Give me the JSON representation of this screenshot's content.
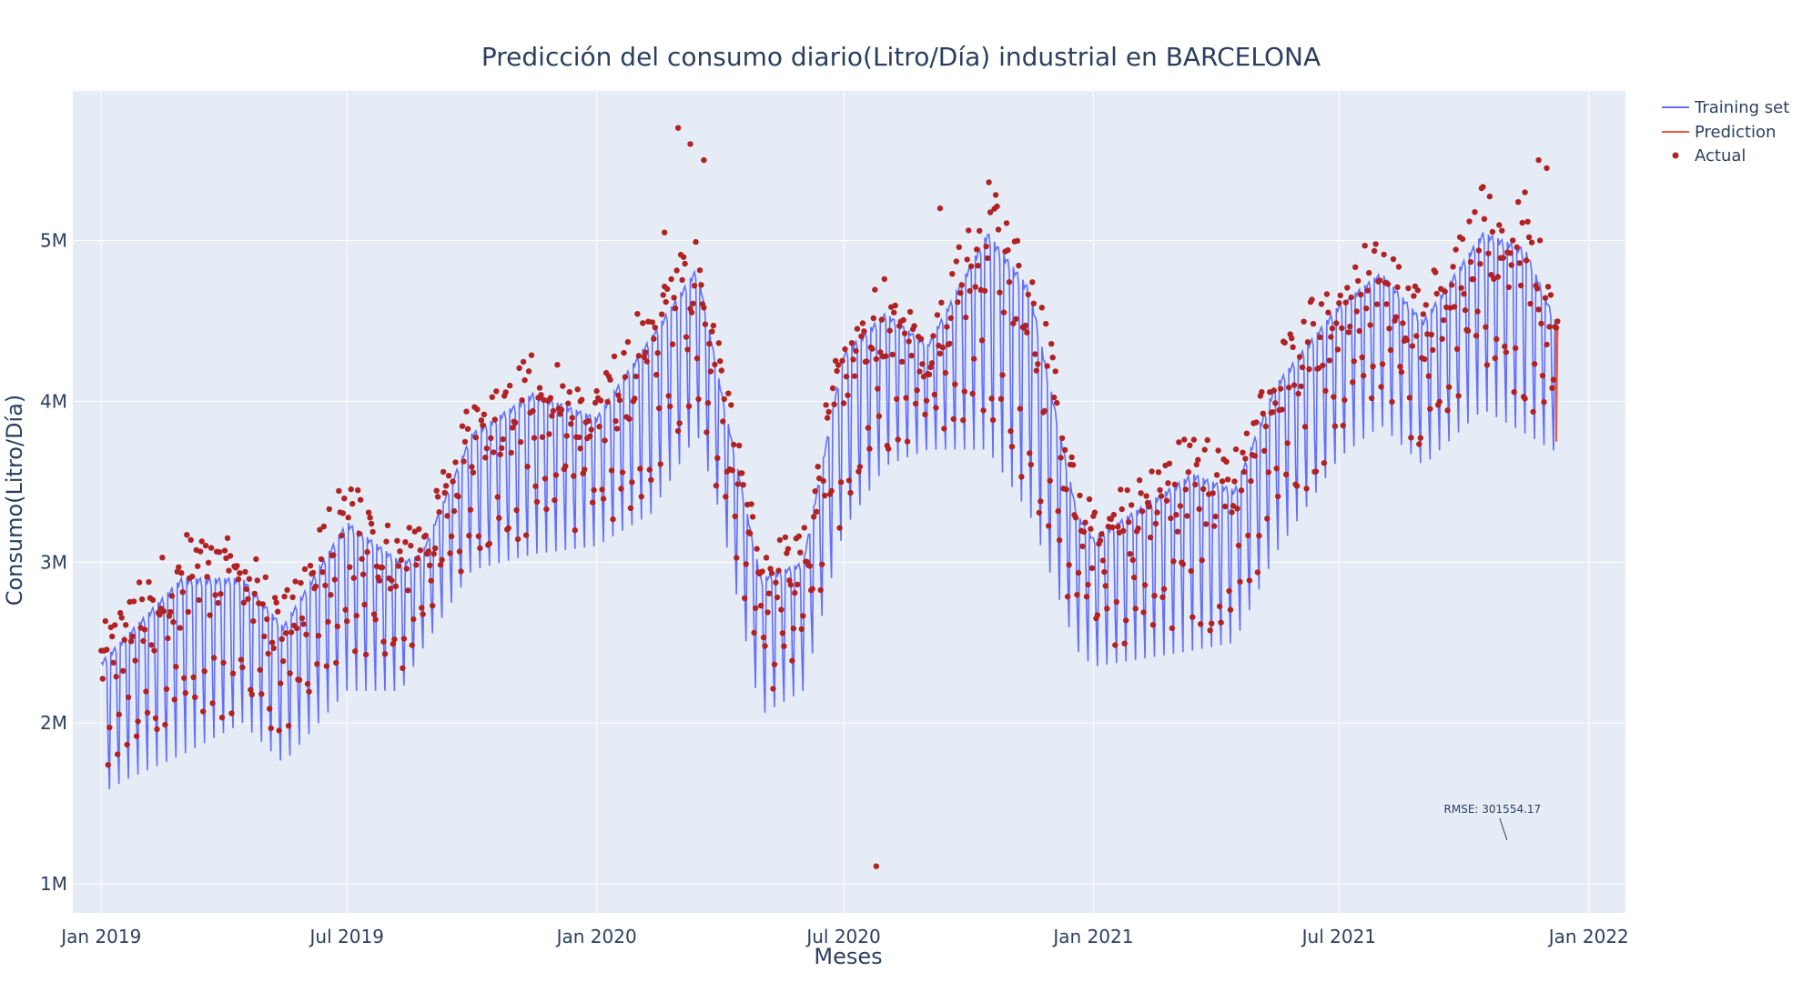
{
  "chart_data": {
    "type": "line",
    "title": "Predicción del consumo diario(Litro/Día) industrial en BARCELONA",
    "xlabel": "Meses",
    "ylabel": "Consumo(Litro/Día)",
    "x_range": [
      "2018-12-11",
      "2022-01-28"
    ],
    "ylim": [
      820000,
      5930000
    ],
    "x_ticks": [
      {
        "date": "2019-01-01",
        "label": "Jan 2019"
      },
      {
        "date": "2019-07-01",
        "label": "Jul 2019"
      },
      {
        "date": "2020-01-01",
        "label": "Jan 2020"
      },
      {
        "date": "2020-07-01",
        "label": "Jul 2020"
      },
      {
        "date": "2021-01-01",
        "label": "Jan 2021"
      },
      {
        "date": "2021-07-01",
        "label": "Jul 2021"
      },
      {
        "date": "2022-01-01",
        "label": "Jan 2022"
      }
    ],
    "y_ticks": [
      {
        "value": 1000000,
        "label": "1M"
      },
      {
        "value": 2000000,
        "label": "2M"
      },
      {
        "value": 3000000,
        "label": "3M"
      },
      {
        "value": 4000000,
        "label": "4M"
      },
      {
        "value": 5000000,
        "label": "5M"
      }
    ],
    "grid": true,
    "legend_position": "top-right",
    "colors": {
      "training": "#636efa",
      "prediction": "#ef553b",
      "actual": "#b22222",
      "plot_bg": "#e5ecf6",
      "grid": "#ffffff",
      "text": "#2a3f5f"
    },
    "series": [
      {
        "name": "Training set",
        "kind": "line",
        "description": "weekly-oscillating daily series",
        "envelope_dates": [
          "2019-01-01",
          "2019-01-20",
          "2019-03-01",
          "2019-04-15",
          "2019-05-15",
          "2019-07-01",
          "2019-08-10",
          "2019-08-25",
          "2019-10-01",
          "2019-11-15",
          "2020-01-01",
          "2020-02-10",
          "2020-03-15",
          "2020-04-01",
          "2020-05-01",
          "2020-06-01",
          "2020-07-01",
          "2020-08-01",
          "2020-09-01",
          "2020-10-15",
          "2020-11-15",
          "2020-12-20",
          "2021-01-01",
          "2021-03-15",
          "2021-04-15",
          "2021-05-15",
          "2021-07-01",
          "2021-08-01",
          "2021-09-01",
          "2021-10-15",
          "2021-11-15",
          "2021-12-09"
        ],
        "envelope_high": [
          2380000,
          2550000,
          2900000,
          2900000,
          2600000,
          3250000,
          3000000,
          3050000,
          3800000,
          4050000,
          3900000,
          4400000,
          4830000,
          4100000,
          2900000,
          3000000,
          4300000,
          4550000,
          4350000,
          5050000,
          4700000,
          3300000,
          3150000,
          3550000,
          3450000,
          4100000,
          4600000,
          4800000,
          4500000,
          5050000,
          4950000,
          4470000
        ],
        "envelope_low": [
          1560000,
          1650000,
          1800000,
          2000000,
          1750000,
          2200000,
          2200000,
          2450000,
          2950000,
          3050000,
          3100000,
          3300000,
          3800000,
          3300000,
          2050000,
          2200000,
          3200000,
          3600000,
          3700000,
          3700000,
          3300000,
          2450000,
          2350000,
          2450000,
          2500000,
          3050000,
          3650000,
          3850000,
          3600000,
          3950000,
          3800000,
          3680000
        ]
      },
      {
        "name": "Prediction",
        "kind": "line",
        "x": [
          "2021-12-08",
          "2021-12-08",
          "2021-12-09"
        ],
        "y": [
          4480000,
          3750000,
          4450000
        ]
      },
      {
        "name": "Actual",
        "kind": "scatter",
        "description": "daily observed values, mostly overlapping the training band; notable points below",
        "outliers_x": [
          "2020-03-01",
          "2020-03-10",
          "2020-03-20",
          "2020-02-20",
          "2020-07-25",
          "2019-12-20",
          "2020-09-10",
          "2021-11-15",
          "2021-11-25",
          "2021-12-01"
        ],
        "outliers_y": [
          5700000,
          5600000,
          5500000,
          5050000,
          1110000,
          4000000,
          5200000,
          5300000,
          5500000,
          5450000
        ]
      }
    ],
    "annotations": [
      {
        "text": "RMSE: 301554.17",
        "x": "2021-10-22",
        "y": 1420000
      }
    ]
  }
}
